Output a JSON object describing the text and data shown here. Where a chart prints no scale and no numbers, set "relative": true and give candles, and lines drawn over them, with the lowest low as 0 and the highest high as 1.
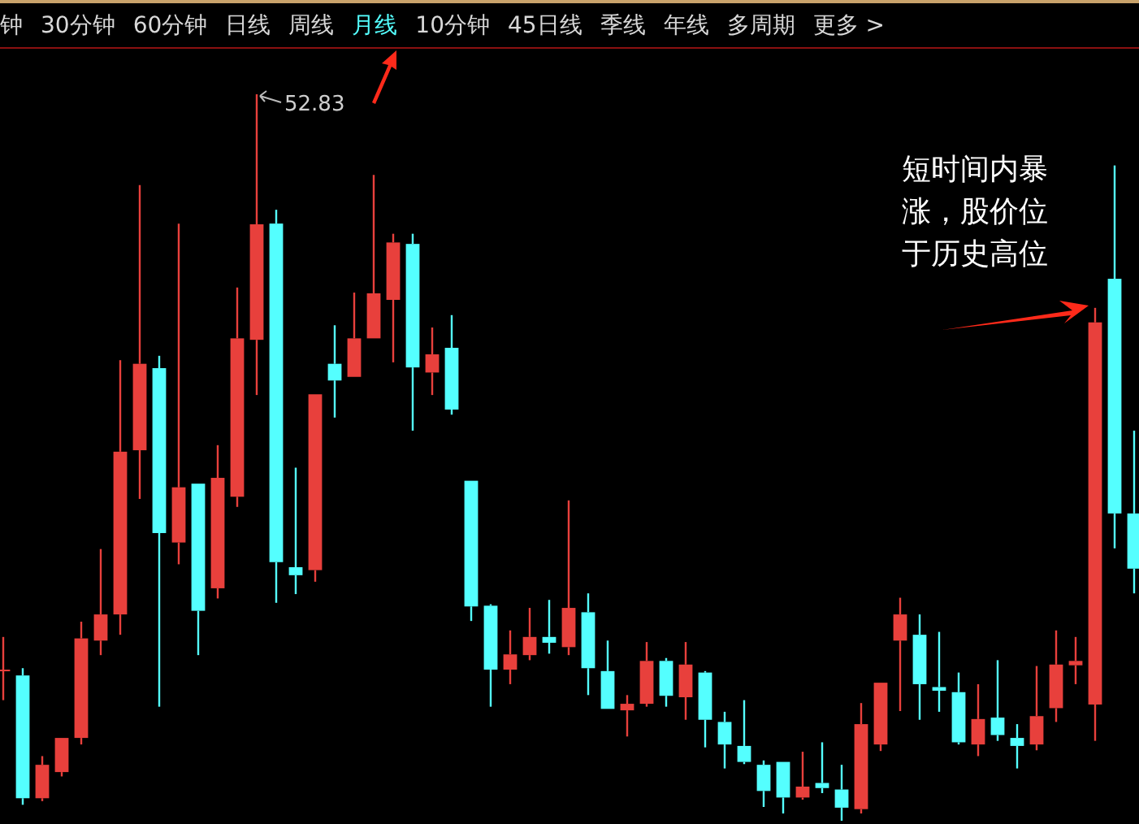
{
  "chart_data": {
    "type": "candlestick",
    "relative": true,
    "categories": [
      null,
      null,
      null,
      null,
      null,
      null,
      null,
      null,
      null,
      null,
      null,
      null,
      null,
      null,
      null,
      null,
      null,
      null,
      null,
      null,
      null,
      null,
      null,
      null,
      null,
      null,
      null,
      null,
      null,
      null,
      null,
      null,
      null,
      null,
      null,
      null,
      null,
      null,
      null,
      null,
      null,
      null,
      null,
      null,
      null,
      null,
      null,
      null,
      null,
      null,
      null,
      null,
      null,
      null,
      null,
      null,
      null,
      null,
      null
    ],
    "ohlc": [
      [
        0.208,
        0.253,
        0.166,
        0.208
      ],
      [
        0.2,
        0.21,
        0.022,
        0.031
      ],
      [
        0.031,
        0.089,
        0.027,
        0.077
      ],
      [
        0.067,
        0.114,
        0.061,
        0.114
      ],
      [
        0.114,
        0.274,
        0.105,
        0.251
      ],
      [
        0.248,
        0.374,
        0.228,
        0.284
      ],
      [
        0.284,
        0.634,
        0.256,
        0.508
      ],
      [
        0.51,
        0.875,
        0.443,
        0.629
      ],
      [
        0.623,
        0.64,
        0.157,
        0.396
      ],
      [
        0.383,
        0.822,
        0.353,
        0.459
      ],
      [
        0.464,
        0.464,
        0.228,
        0.289
      ],
      [
        0.32,
        0.517,
        0.306,
        0.472
      ],
      [
        0.446,
        0.734,
        0.432,
        0.664
      ],
      [
        0.662,
        1.0,
        0.586,
        0.821
      ],
      [
        0.822,
        0.841,
        0.3,
        0.356
      ],
      [
        0.349,
        0.486,
        0.312,
        0.338
      ],
      [
        0.345,
        0.587,
        0.329,
        0.587
      ],
      [
        0.629,
        0.682,
        0.555,
        0.606
      ],
      [
        0.611,
        0.727,
        0.611,
        0.664
      ],
      [
        0.664,
        0.889,
        0.664,
        0.726
      ],
      [
        0.717,
        0.808,
        0.631,
        0.796
      ],
      [
        0.794,
        0.808,
        0.537,
        0.624
      ],
      [
        0.617,
        0.679,
        0.586,
        0.642
      ],
      [
        0.651,
        0.696,
        0.559,
        0.566
      ],
      [
        0.468,
        0.468,
        0.275,
        0.295
      ],
      [
        0.296,
        0.298,
        0.157,
        0.208
      ],
      [
        0.208,
        0.262,
        0.188,
        0.229
      ],
      [
        0.228,
        0.293,
        0.221,
        0.253
      ],
      [
        0.253,
        0.304,
        0.23,
        0.245
      ],
      [
        0.239,
        0.441,
        0.228,
        0.293
      ],
      [
        0.287,
        0.313,
        0.173,
        0.21
      ],
      [
        0.206,
        0.248,
        0.154,
        0.154
      ],
      [
        0.152,
        0.173,
        0.116,
        0.161
      ],
      [
        0.161,
        0.246,
        0.157,
        0.22
      ],
      [
        0.22,
        0.224,
        0.157,
        0.172
      ],
      [
        0.17,
        0.246,
        0.139,
        0.215
      ],
      [
        0.204,
        0.206,
        0.101,
        0.139
      ],
      [
        0.136,
        0.15,
        0.072,
        0.105
      ],
      [
        0.103,
        0.166,
        0.078,
        0.081
      ],
      [
        0.077,
        0.083,
        0.019,
        0.041
      ],
      [
        0.081,
        0.081,
        0.01,
        0.032
      ],
      [
        0.032,
        0.095,
        0.029,
        0.047
      ],
      [
        0.052,
        0.108,
        0.038,
        0.045
      ],
      [
        0.043,
        0.077,
        0.0,
        0.018
      ],
      [
        0.016,
        0.162,
        0.01,
        0.133
      ],
      [
        0.105,
        0.19,
        0.096,
        0.19
      ],
      [
        0.248,
        0.307,
        0.151,
        0.284
      ],
      [
        0.256,
        0.284,
        0.139,
        0.188
      ],
      [
        0.184,
        0.26,
        0.15,
        0.179
      ],
      [
        0.177,
        0.204,
        0.105,
        0.108
      ],
      [
        0.105,
        0.188,
        0.089,
        0.14
      ],
      [
        0.142,
        0.221,
        0.11,
        0.118
      ],
      [
        0.114,
        0.133,
        0.072,
        0.103
      ],
      [
        0.105,
        0.213,
        0.097,
        0.144
      ],
      [
        0.155,
        0.262,
        0.136,
        0.215
      ],
      [
        0.214,
        0.253,
        0.188,
        0.22
      ],
      [
        0.16,
        0.706,
        0.11,
        0.686
      ],
      [
        0.746,
        0.902,
        0.375,
        0.423
      ],
      [
        0.423,
        0.537,
        0.313,
        0.347
      ]
    ],
    "annotations": [
      "短时间内暴涨，股价位于历史高位",
      "52.83",
      "钟",
      "30分钟",
      "60分钟",
      "日线",
      "周线",
      "月线",
      "10分钟",
      "45日线",
      "季线",
      "年线",
      "多周期",
      "更多 >"
    ]
  }
}
